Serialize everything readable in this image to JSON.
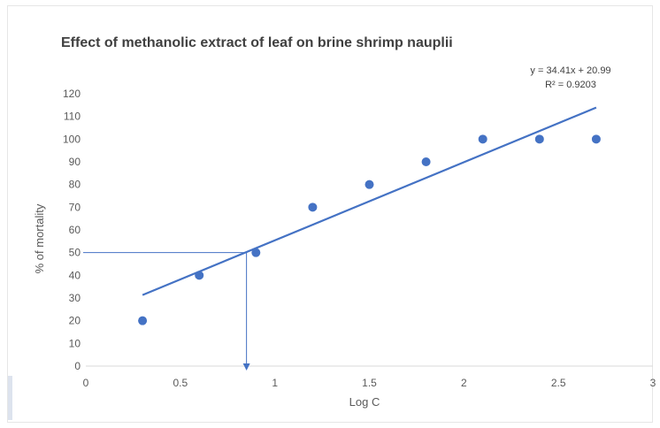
{
  "chart_data": {
    "type": "scatter",
    "title": "Effect of methanolic extract of leaf on brine shrimp nauplii",
    "xlabel": "Log C",
    "ylabel": "% of mortality",
    "xlim": [
      0,
      3
    ],
    "ylim": [
      0,
      120
    ],
    "x_ticks": [
      0,
      0.5,
      1,
      1.5,
      2,
      2.5,
      3
    ],
    "x_tick_labels": [
      "0",
      "0.5",
      "1",
      "1.5",
      "2",
      "2.5",
      "3"
    ],
    "y_ticks": [
      0,
      10,
      20,
      30,
      40,
      50,
      60,
      70,
      80,
      90,
      100,
      110,
      120
    ],
    "y_tick_labels": [
      "0",
      "10",
      "20",
      "30",
      "40",
      "50",
      "60",
      "70",
      "80",
      "90",
      "100",
      "110",
      "120"
    ],
    "points": [
      {
        "x": 0.3,
        "y": 20
      },
      {
        "x": 0.6,
        "y": 40
      },
      {
        "x": 0.9,
        "y": 50
      },
      {
        "x": 1.2,
        "y": 70
      },
      {
        "x": 1.5,
        "y": 80
      },
      {
        "x": 1.8,
        "y": 90
      },
      {
        "x": 2.1,
        "y": 100
      },
      {
        "x": 2.4,
        "y": 100
      },
      {
        "x": 2.7,
        "y": 100
      }
    ],
    "trendline": {
      "slope": 34.41,
      "intercept": 20.99,
      "x_range": [
        0.3,
        2.7
      ],
      "equation_label": "y = 34.41x + 20.99",
      "r2_label": "R² = 0.9203"
    },
    "lc50_marker": {
      "x": 0.85,
      "y": 50
    },
    "grid": false,
    "legend": "none",
    "colors": {
      "points": "#4472c4",
      "trendline": "#4472c4",
      "marker": "#4472c4",
      "axis": "#d9d9d9",
      "text": "#595959"
    }
  }
}
